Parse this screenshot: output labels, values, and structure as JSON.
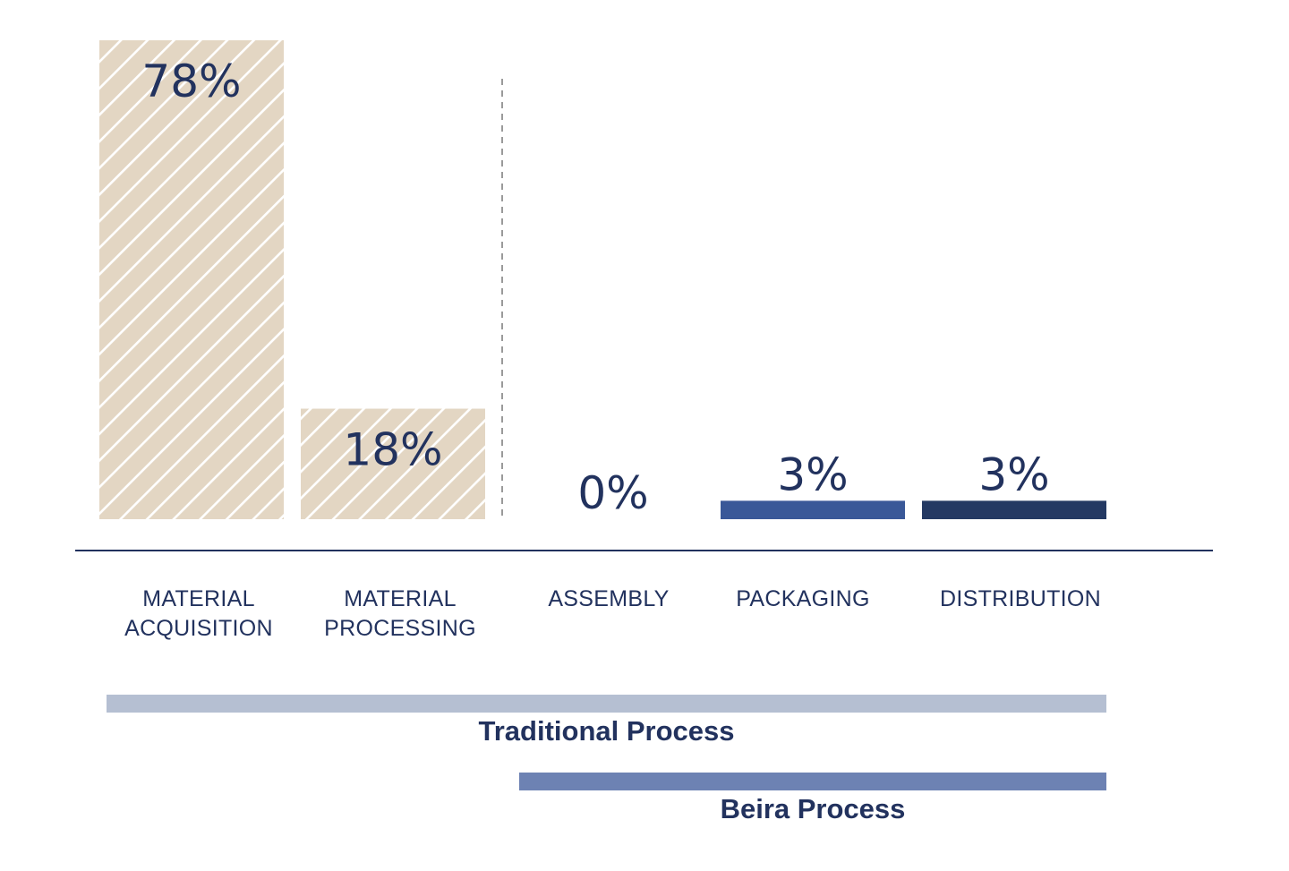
{
  "chart_data": {
    "type": "bar",
    "categories": [
      {
        "line1": "MATERIAL",
        "line2": "ACQUISITION"
      },
      {
        "line1": "MATERIAL",
        "line2": "PROCESSING"
      },
      {
        "line1": "ASSEMBLY",
        "line2": ""
      },
      {
        "line1": "PACKAGING",
        "line2": ""
      },
      {
        "line1": "DISTRIBUTION",
        "line2": ""
      }
    ],
    "values": [
      78,
      18,
      0,
      3,
      3
    ],
    "value_labels": [
      "78%",
      "18%",
      "0%",
      "3%",
      "3%"
    ],
    "ylim": [
      0,
      78
    ],
    "bar_styles": [
      "hatched",
      "hatched",
      "none",
      "solid",
      "solid"
    ],
    "colors": {
      "hatch_fill": "#e3d6c3",
      "packaging": "#3a5898",
      "distribution": "#243963",
      "text": "#22325e",
      "axis": "#22325e",
      "divider": "#9a9a9a"
    },
    "processes": [
      {
        "label": "Traditional Process",
        "from_category": 0,
        "to_category": 4,
        "color": "#b5bfd2"
      },
      {
        "label": "Beira Process",
        "from_category": 2,
        "to_category": 4,
        "color": "#6d82b3"
      }
    ]
  }
}
